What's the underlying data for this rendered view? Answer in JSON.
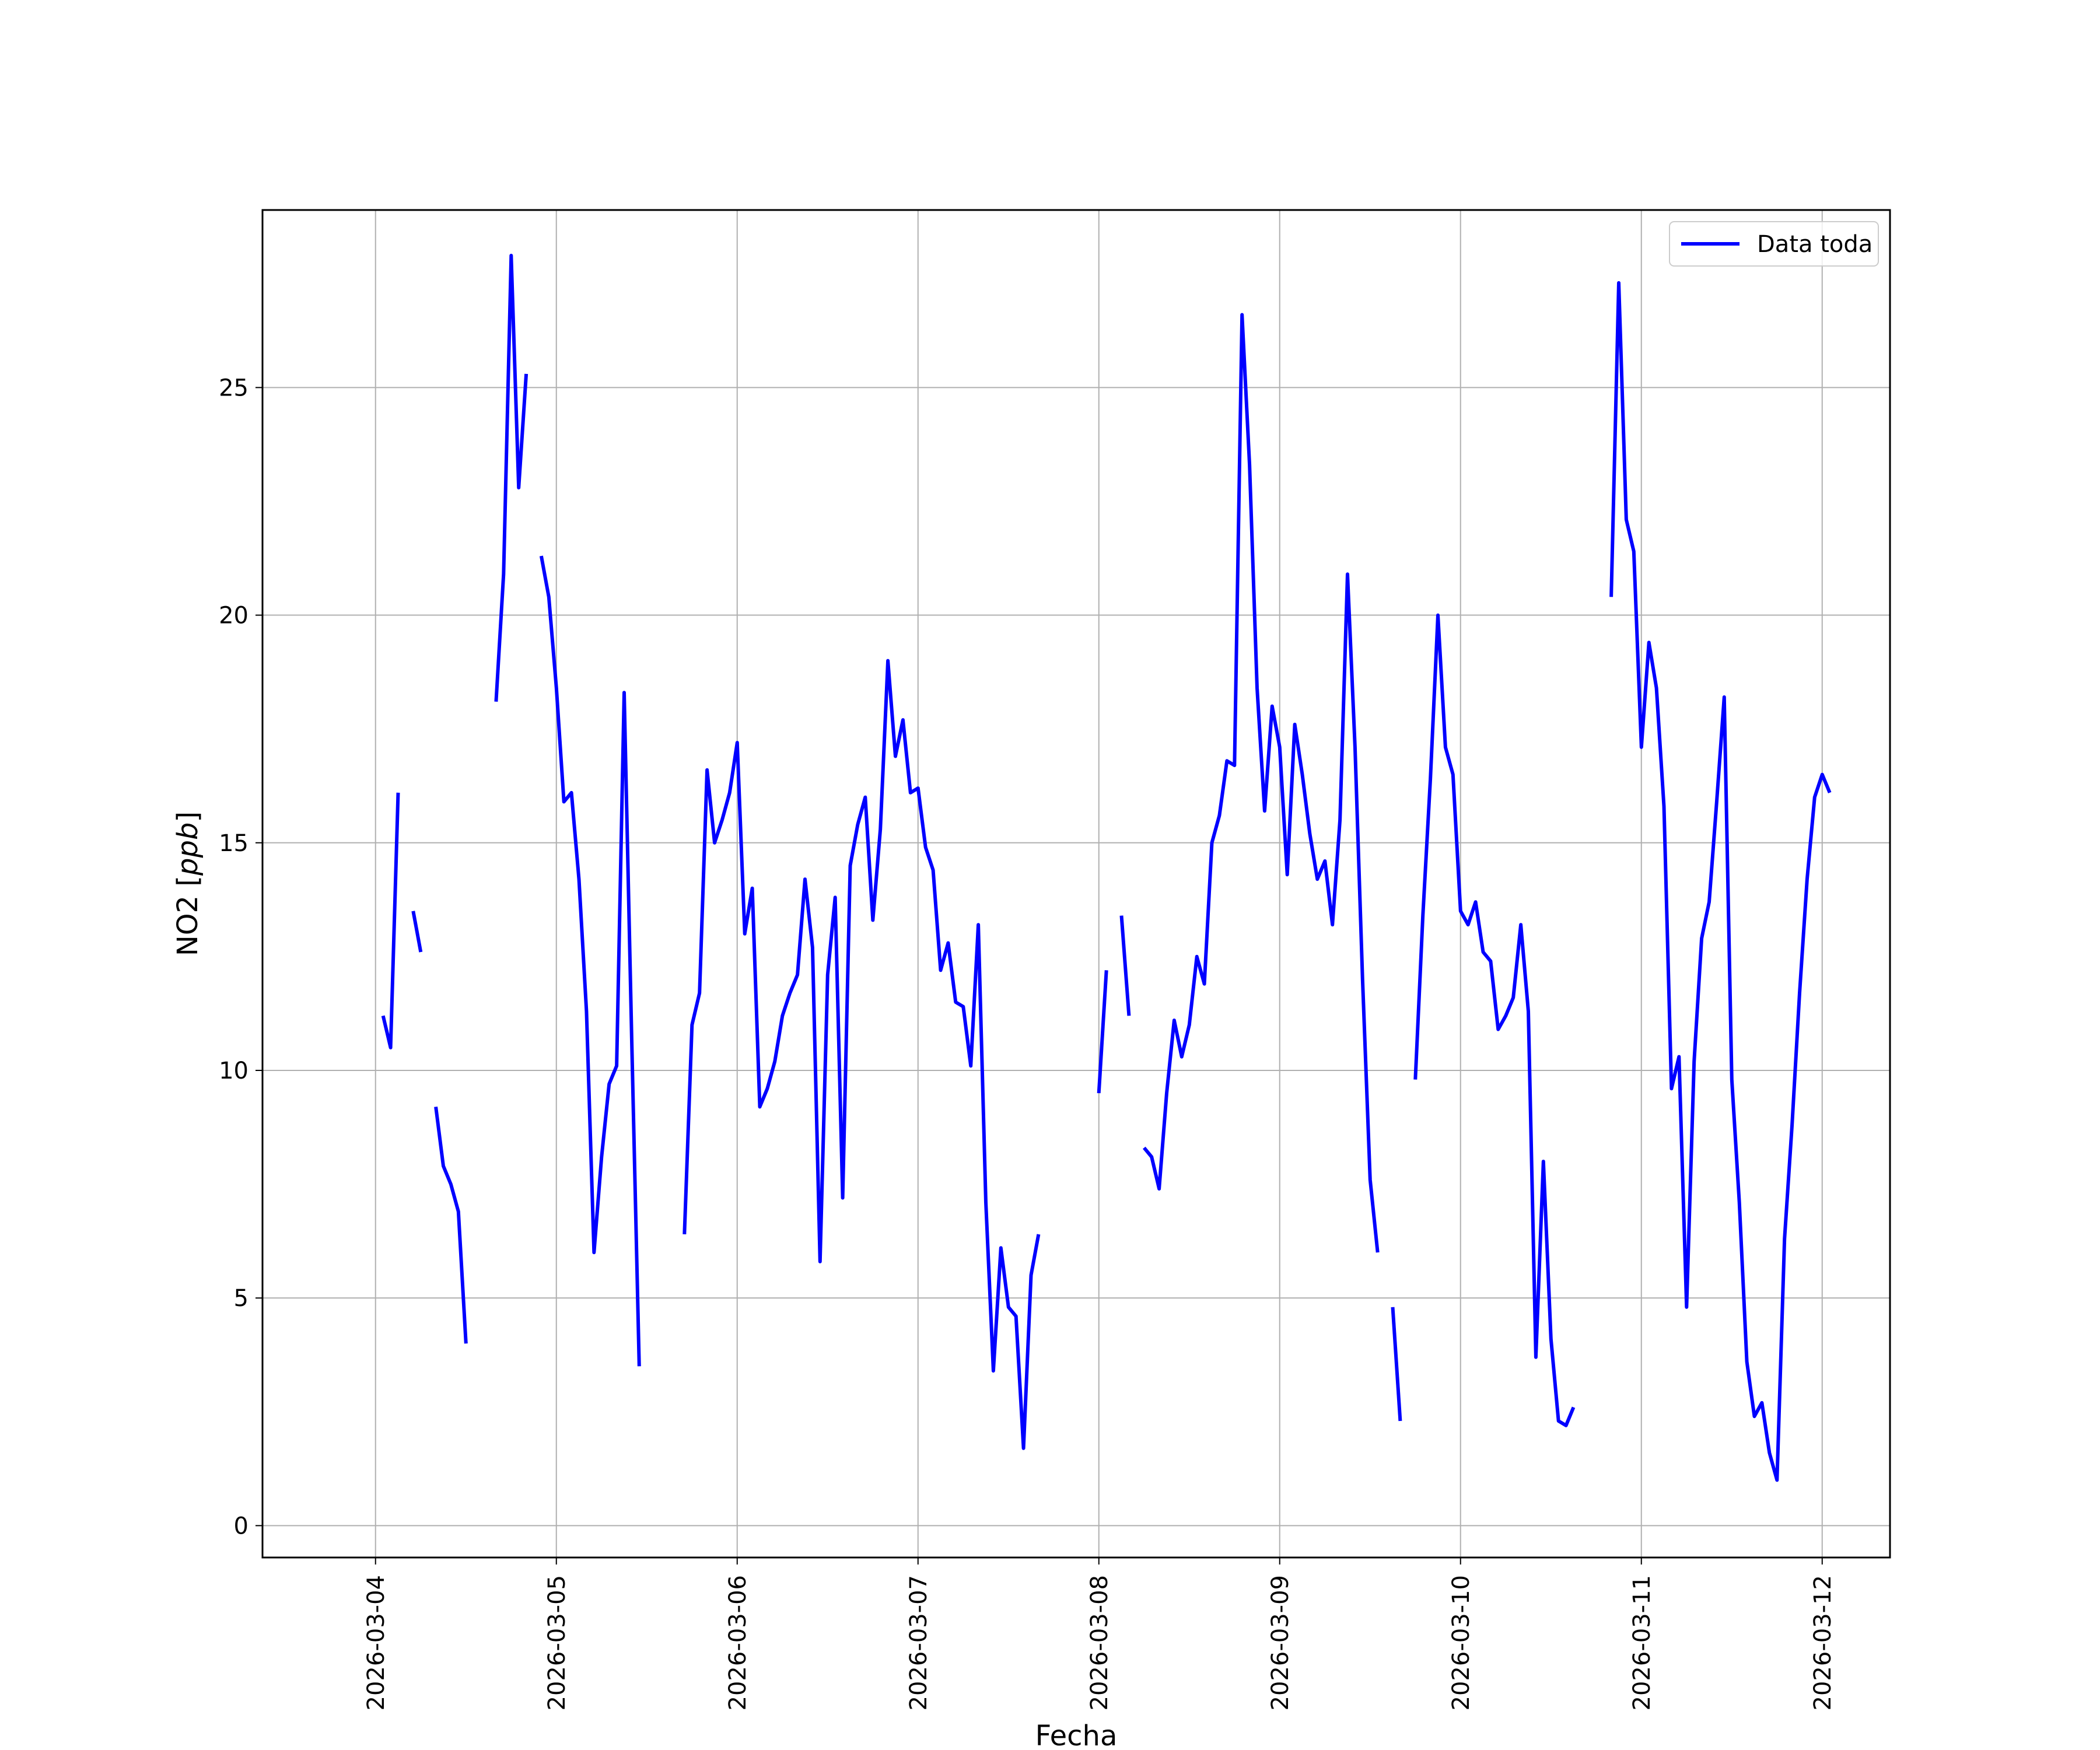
{
  "chart_data": {
    "type": "line",
    "title": "",
    "xlabel": "Fecha",
    "ylabel": "NO2 [ppb]",
    "ylabel_main": "NO2 [",
    "ylabel_unit": "ppb",
    "ylabel_close": "]",
    "x_axis_type": "date",
    "xlim": [
      "2026-03-03 09:00",
      "2026-03-12 09:00"
    ],
    "ylim": [
      -0.7,
      28.9
    ],
    "grid": true,
    "legend_position": "upper right",
    "x_ticks": [
      "2026-03-04",
      "2026-03-05",
      "2026-03-06",
      "2026-03-07",
      "2026-03-08",
      "2026-03-09",
      "2026-03-10",
      "2026-03-11",
      "2026-03-12"
    ],
    "y_ticks": [
      0,
      5,
      10,
      15,
      20,
      25
    ],
    "series": [
      {
        "name": "Data toda",
        "color": "#0000ff",
        "segments": [
          [
            [
              "2026-03-04 01:00",
              11.2
            ],
            [
              "2026-03-04 02:00",
              10.5
            ],
            [
              "2026-03-04 03:00",
              16.1
            ]
          ],
          [
            [
              "2026-03-04 05:00",
              13.5
            ],
            [
              "2026-03-04 06:00",
              12.6
            ]
          ],
          [
            [
              "2026-03-04 08:00",
              9.2
            ],
            [
              "2026-03-04 09:00",
              7.9
            ],
            [
              "2026-03-04 10:00",
              7.5
            ],
            [
              "2026-03-04 11:00",
              6.9
            ],
            [
              "2026-03-04 12:00",
              4.0
            ]
          ],
          [
            [
              "2026-03-04 16:00",
              18.1
            ],
            [
              "2026-03-04 17:00",
              20.9
            ],
            [
              "2026-03-04 18:00",
              27.9
            ],
            [
              "2026-03-04 19:00",
              22.8
            ],
            [
              "2026-03-04 20:00",
              25.3
            ]
          ],
          [
            [
              "2026-03-04 22:00",
              21.3
            ],
            [
              "2026-03-04 23:00",
              20.4
            ],
            [
              "2026-03-05 00:00",
              18.4
            ],
            [
              "2026-03-05 01:00",
              15.9
            ],
            [
              "2026-03-05 02:00",
              16.1
            ],
            [
              "2026-03-05 03:00",
              14.2
            ],
            [
              "2026-03-05 04:00",
              11.3
            ],
            [
              "2026-03-05 05:00",
              6.0
            ],
            [
              "2026-03-05 06:00",
              8.1
            ],
            [
              "2026-03-05 07:00",
              9.7
            ],
            [
              "2026-03-05 08:00",
              10.1
            ],
            [
              "2026-03-05 09:00",
              18.3
            ],
            [
              "2026-03-05 10:00",
              10.7
            ],
            [
              "2026-03-05 11:00",
              3.5
            ]
          ],
          [
            [
              "2026-03-05 17:00",
              6.4
            ],
            [
              "2026-03-05 18:00",
              11.0
            ],
            [
              "2026-03-05 19:00",
              11.7
            ],
            [
              "2026-03-05 20:00",
              16.6
            ],
            [
              "2026-03-05 21:00",
              15.0
            ],
            [
              "2026-03-05 22:00",
              15.5
            ],
            [
              "2026-03-05 23:00",
              16.1
            ],
            [
              "2026-03-06 00:00",
              17.2
            ],
            [
              "2026-03-06 01:00",
              13.0
            ],
            [
              "2026-03-06 02:00",
              14.0
            ],
            [
              "2026-03-06 03:00",
              9.2
            ],
            [
              "2026-03-06 04:00",
              9.6
            ],
            [
              "2026-03-06 05:00",
              10.2
            ],
            [
              "2026-03-06 06:00",
              11.2
            ],
            [
              "2026-03-06 07:00",
              11.7
            ],
            [
              "2026-03-06 08:00",
              12.1
            ],
            [
              "2026-03-06 09:00",
              14.2
            ],
            [
              "2026-03-06 10:00",
              12.7
            ],
            [
              "2026-03-06 11:00",
              5.8
            ],
            [
              "2026-03-06 12:00",
              12.1
            ],
            [
              "2026-03-06 13:00",
              13.8
            ],
            [
              "2026-03-06 14:00",
              7.2
            ],
            [
              "2026-03-06 15:00",
              14.5
            ],
            [
              "2026-03-06 16:00",
              15.4
            ],
            [
              "2026-03-06 17:00",
              16.0
            ],
            [
              "2026-03-06 18:00",
              13.3
            ],
            [
              "2026-03-06 19:00",
              15.3
            ],
            [
              "2026-03-06 20:00",
              19.0
            ],
            [
              "2026-03-06 21:00",
              16.9
            ],
            [
              "2026-03-06 22:00",
              17.7
            ],
            [
              "2026-03-06 23:00",
              16.1
            ],
            [
              "2026-03-07 00:00",
              16.2
            ],
            [
              "2026-03-07 01:00",
              14.9
            ],
            [
              "2026-03-07 02:00",
              14.4
            ],
            [
              "2026-03-07 03:00",
              12.2
            ],
            [
              "2026-03-07 04:00",
              12.8
            ],
            [
              "2026-03-07 05:00",
              11.5
            ],
            [
              "2026-03-07 06:00",
              11.4
            ],
            [
              "2026-03-07 07:00",
              10.1
            ],
            [
              "2026-03-07 08:00",
              13.2
            ],
            [
              "2026-03-07 09:00",
              7.1
            ],
            [
              "2026-03-07 10:00",
              3.4
            ],
            [
              "2026-03-07 11:00",
              6.1
            ],
            [
              "2026-03-07 12:00",
              4.8
            ],
            [
              "2026-03-07 13:00",
              4.6
            ],
            [
              "2026-03-07 14:00",
              1.7
            ],
            [
              "2026-03-07 15:00",
              5.5
            ],
            [
              "2026-03-07 16:00",
              6.4
            ]
          ],
          [
            [
              "2026-03-08 00:00",
              9.5
            ],
            [
              "2026-03-08 01:00",
              12.2
            ]
          ],
          [
            [
              "2026-03-08 03:00",
              13.4
            ],
            [
              "2026-03-08 04:00",
              11.2
            ]
          ],
          [
            [
              "2026-03-08 06:00",
              8.3
            ],
            [
              "2026-03-08 07:00",
              8.1
            ],
            [
              "2026-03-08 08:00",
              7.4
            ],
            [
              "2026-03-08 09:00",
              9.5
            ],
            [
              "2026-03-08 10:00",
              11.1
            ],
            [
              "2026-03-08 11:00",
              10.3
            ],
            [
              "2026-03-08 12:00",
              11.0
            ],
            [
              "2026-03-08 13:00",
              12.5
            ],
            [
              "2026-03-08 14:00",
              11.9
            ],
            [
              "2026-03-08 15:00",
              15.0
            ],
            [
              "2026-03-08 16:00",
              15.6
            ],
            [
              "2026-03-08 17:00",
              16.8
            ],
            [
              "2026-03-08 18:00",
              16.7
            ],
            [
              "2026-03-08 19:00",
              26.6
            ],
            [
              "2026-03-08 20:00",
              23.3
            ],
            [
              "2026-03-08 21:00",
              18.4
            ],
            [
              "2026-03-08 22:00",
              15.7
            ],
            [
              "2026-03-08 23:00",
              18.0
            ],
            [
              "2026-03-09 00:00",
              17.1
            ],
            [
              "2026-03-09 01:00",
              14.3
            ],
            [
              "2026-03-09 02:00",
              17.6
            ],
            [
              "2026-03-09 03:00",
              16.5
            ],
            [
              "2026-03-09 04:00",
              15.2
            ],
            [
              "2026-03-09 05:00",
              14.2
            ],
            [
              "2026-03-09 06:00",
              14.6
            ],
            [
              "2026-03-09 07:00",
              13.2
            ],
            [
              "2026-03-09 08:00",
              15.5
            ],
            [
              "2026-03-09 09:00",
              20.9
            ],
            [
              "2026-03-09 10:00",
              17.1
            ],
            [
              "2026-03-09 11:00",
              12.0
            ],
            [
              "2026-03-09 12:00",
              7.6
            ],
            [
              "2026-03-09 13:00",
              6.0
            ]
          ],
          [
            [
              "2026-03-09 15:00",
              4.8
            ],
            [
              "2026-03-09 16:00",
              2.3
            ]
          ],
          [
            [
              "2026-03-09 18:00",
              9.8
            ],
            [
              "2026-03-09 19:00",
              13.4
            ],
            [
              "2026-03-09 20:00",
              16.4
            ],
            [
              "2026-03-09 21:00",
              20.0
            ],
            [
              "2026-03-09 22:00",
              17.1
            ],
            [
              "2026-03-09 23:00",
              16.5
            ],
            [
              "2026-03-10 00:00",
              13.5
            ],
            [
              "2026-03-10 01:00",
              13.2
            ],
            [
              "2026-03-10 02:00",
              13.7
            ],
            [
              "2026-03-10 03:00",
              12.6
            ],
            [
              "2026-03-10 04:00",
              12.4
            ],
            [
              "2026-03-10 05:00",
              10.9
            ],
            [
              "2026-03-10 06:00",
              11.2
            ],
            [
              "2026-03-10 07:00",
              11.6
            ],
            [
              "2026-03-10 08:00",
              13.2
            ],
            [
              "2026-03-10 09:00",
              11.3
            ],
            [
              "2026-03-10 10:00",
              3.7
            ],
            [
              "2026-03-10 11:00",
              8.0
            ],
            [
              "2026-03-10 12:00",
              4.1
            ],
            [
              "2026-03-10 13:00",
              2.3
            ],
            [
              "2026-03-10 14:00",
              2.2
            ],
            [
              "2026-03-10 15:00",
              2.6
            ]
          ],
          [
            [
              "2026-03-10 20:00",
              20.4
            ],
            [
              "2026-03-10 21:00",
              27.3
            ],
            [
              "2026-03-10 22:00",
              22.1
            ],
            [
              "2026-03-10 23:00",
              21.4
            ],
            [
              "2026-03-11 00:00",
              17.1
            ],
            [
              "2026-03-11 01:00",
              19.4
            ],
            [
              "2026-03-11 02:00",
              18.4
            ],
            [
              "2026-03-11 03:00",
              15.8
            ],
            [
              "2026-03-11 04:00",
              9.6
            ],
            [
              "2026-03-11 05:00",
              10.3
            ],
            [
              "2026-03-11 06:00",
              4.8
            ],
            [
              "2026-03-11 07:00",
              10.2
            ],
            [
              "2026-03-11 08:00",
              12.9
            ],
            [
              "2026-03-11 09:00",
              13.7
            ],
            [
              "2026-03-11 10:00",
              15.9
            ],
            [
              "2026-03-11 11:00",
              18.2
            ],
            [
              "2026-03-11 12:00",
              9.8
            ],
            [
              "2026-03-11 13:00",
              7.1
            ],
            [
              "2026-03-11 14:00",
              3.6
            ],
            [
              "2026-03-11 15:00",
              2.4
            ],
            [
              "2026-03-11 16:00",
              2.7
            ],
            [
              "2026-03-11 17:00",
              1.6
            ],
            [
              "2026-03-11 18:00",
              1.0
            ],
            [
              "2026-03-11 19:00",
              6.3
            ],
            [
              "2026-03-11 20:00",
              8.8
            ],
            [
              "2026-03-11 21:00",
              11.7
            ],
            [
              "2026-03-11 22:00",
              14.2
            ],
            [
              "2026-03-11 23:00",
              16.0
            ],
            [
              "2026-03-12 00:00",
              16.5
            ],
            [
              "2026-03-12 01:00",
              16.1
            ]
          ]
        ]
      }
    ]
  }
}
